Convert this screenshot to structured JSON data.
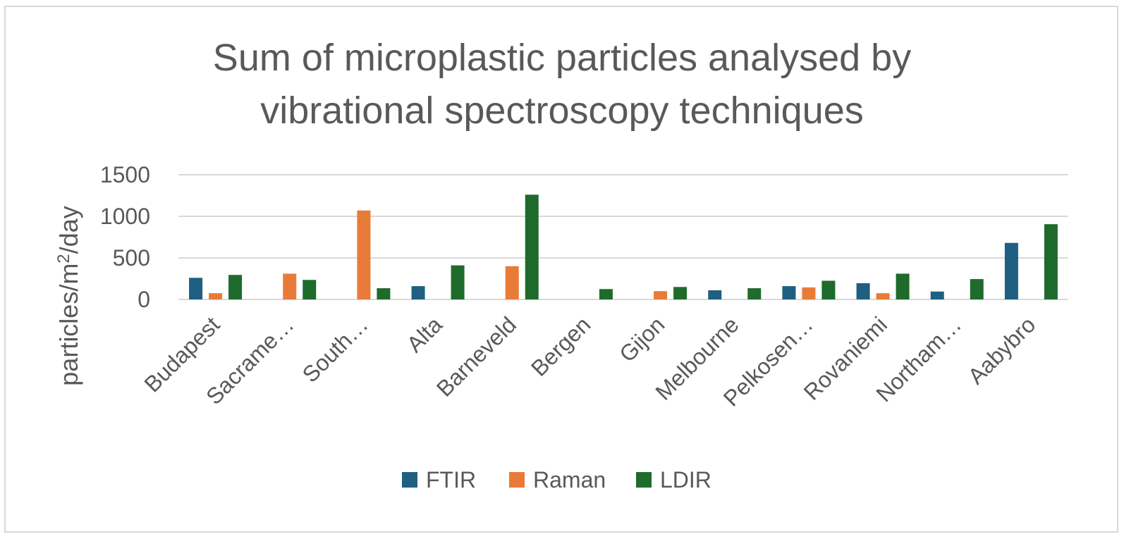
{
  "chart_data": {
    "type": "bar",
    "title": "Sum of microplastic particles analysed by vibrational spectroscopy techniques",
    "title_lines": [
      "Sum of microplastic particles analysed by",
      "vibrational spectroscopy techniques"
    ],
    "ylabel_main": "particles/m",
    "ylabel_sup": "2",
    "ylabel_tail": "/day",
    "xlabel": "",
    "ylim": [
      0,
      1500
    ],
    "yticks": [
      0,
      500,
      1000,
      1500
    ],
    "grid": true,
    "legend_position": "bottom",
    "categories": [
      "Budapest",
      "Sacrame…",
      "South…",
      "Alta",
      "Barneveld",
      "Bergen",
      "Gijon",
      "Melbourne",
      "Pelkosen…",
      "Rovaniemi",
      "Northam…",
      "Aabybro"
    ],
    "series": [
      {
        "name": "FTIR",
        "color": "#1f5f82",
        "values": [
          260,
          0,
          0,
          160,
          0,
          0,
          0,
          110,
          160,
          195,
          95,
          680
        ]
      },
      {
        "name": "Raman",
        "color": "#e97b39",
        "values": [
          75,
          310,
          1070,
          0,
          400,
          0,
          100,
          0,
          145,
          75,
          0,
          0
        ]
      },
      {
        "name": "LDIR",
        "color": "#1e6b2b",
        "values": [
          295,
          235,
          135,
          410,
          1260,
          125,
          150,
          135,
          225,
          310,
          245,
          905
        ]
      }
    ]
  }
}
